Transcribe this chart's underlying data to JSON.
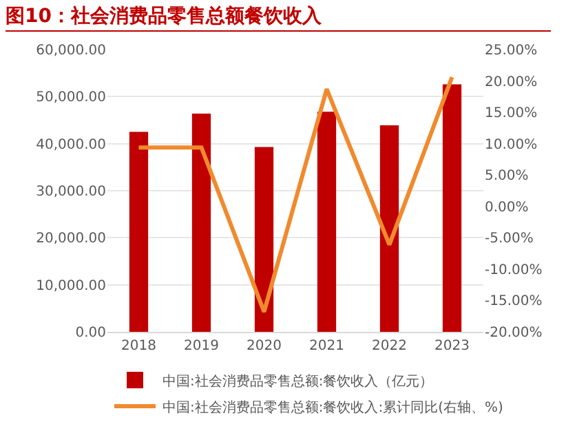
{
  "chart_data": {
    "type": "bar",
    "title": "图10：社会消费品零售总额餐饮收入",
    "categories": [
      "2018",
      "2019",
      "2020",
      "2021",
      "2022",
      "2023"
    ],
    "series": [
      {
        "name": "中国:社会消费品零售总额:餐饮收入（亿元）",
        "color": "#c00000",
        "values": [
          42500,
          46400,
          39300,
          46800,
          43900,
          52600
        ]
      },
      {
        "name": "中国:社会消费品零售总额:餐饮收入:累计同比(右轴、%)",
        "type": "line",
        "axis": "y2",
        "color": "#f08a2e",
        "values": [
          9.4,
          9.4,
          -16.8,
          18.7,
          -6.1,
          20.6
        ]
      }
    ],
    "ylim": [
      0,
      60000
    ],
    "yticks": [
      {
        "value": 0,
        "label": "0.00"
      },
      {
        "value": 10000,
        "label": "10,000.00"
      },
      {
        "value": 20000,
        "label": "20,000.00"
      },
      {
        "value": 30000,
        "label": "30,000.00"
      },
      {
        "value": 40000,
        "label": "40,000.00"
      },
      {
        "value": 50000,
        "label": "50,000.00"
      },
      {
        "value": 60000,
        "label": "60,000.00"
      }
    ],
    "y2lim": [
      -20,
      25
    ],
    "y2ticks": [
      {
        "value": -20,
        "label": "-20.00%"
      },
      {
        "value": -15,
        "label": "-15.00%"
      },
      {
        "value": -10,
        "label": "-10.00%"
      },
      {
        "value": -5,
        "label": "-5.00%"
      },
      {
        "value": 0,
        "label": "0.00%"
      },
      {
        "value": 5,
        "label": "5.00%"
      },
      {
        "value": 10,
        "label": "10.00%"
      },
      {
        "value": 15,
        "label": "15.00%"
      },
      {
        "value": 20,
        "label": "20.00%"
      },
      {
        "value": 25,
        "label": "25.00%"
      }
    ],
    "grid": "y",
    "legend": "bottom",
    "marker": "none",
    "line_style": "solid"
  }
}
